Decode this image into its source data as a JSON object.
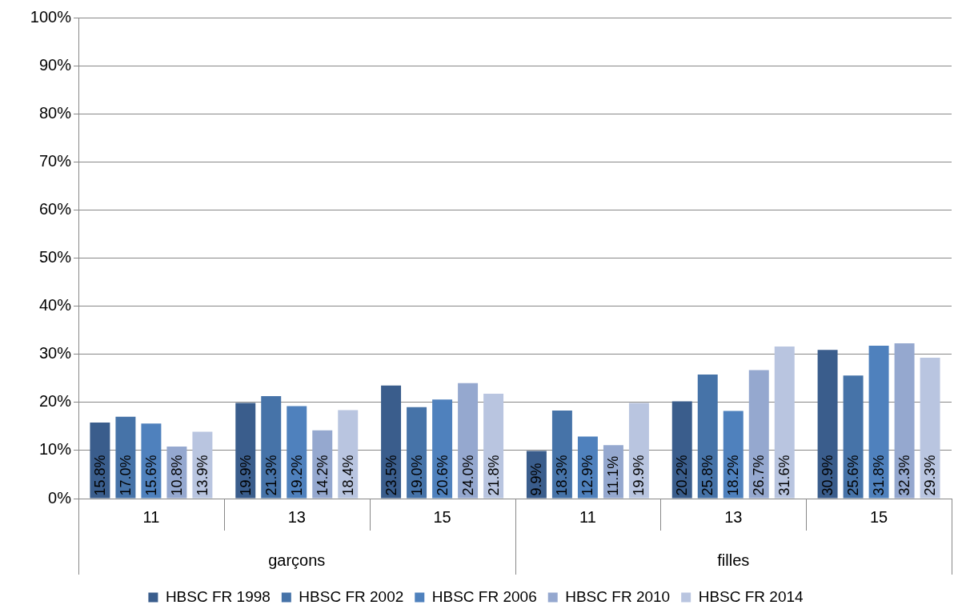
{
  "chart_data": {
    "type": "bar",
    "categories": [
      "11",
      "13",
      "15",
      "11",
      "13",
      "15"
    ],
    "annotations": [
      "garçons",
      "filles"
    ],
    "series": [
      {
        "name": "HBSC FR 1998",
        "color": "#3a5d8c",
        "values": [
          15.8,
          19.9,
          23.5,
          9.9,
          20.2,
          30.9
        ],
        "value_labels": [
          "15.8%",
          "19.9%",
          "23.5%",
          "9.9%",
          "20.2%",
          "30.9%"
        ]
      },
      {
        "name": "HBSC FR 2002",
        "color": "#4673a8",
        "values": [
          17.0,
          21.3,
          19.0,
          18.3,
          25.8,
          25.6
        ],
        "value_labels": [
          "17.0%",
          "21.3%",
          "19.0%",
          "18.3%",
          "25.8%",
          "25.6%"
        ]
      },
      {
        "name": "HBSC FR 2006",
        "color": "#4f81bd",
        "values": [
          15.6,
          19.2,
          20.6,
          12.9,
          18.2,
          31.8
        ],
        "value_labels": [
          "15.6%",
          "19.2%",
          "20.6%",
          "12.9%",
          "18.2%",
          "31.8%"
        ]
      },
      {
        "name": "HBSC FR 2010",
        "color": "#95a8cf",
        "values": [
          10.8,
          14.2,
          24.0,
          11.1,
          26.7,
          32.3
        ],
        "value_labels": [
          "10.8%",
          "14.2%",
          "24.0%",
          "11.1%",
          "26.7%",
          "32.3%"
        ]
      },
      {
        "name": "HBSC FR 2014",
        "color": "#b9c5e0",
        "values": [
          13.9,
          18.4,
          21.8,
          19.9,
          31.6,
          29.3
        ],
        "value_labels": [
          "13.9%",
          "18.4%",
          "21.8%",
          "19.9%",
          "31.6%",
          "29.3%"
        ]
      }
    ],
    "ylim": [
      0,
      100
    ],
    "yticks": [
      {
        "value": 0,
        "label": "0%"
      },
      {
        "value": 10,
        "label": "10%"
      },
      {
        "value": 20,
        "label": "20%"
      },
      {
        "value": 30,
        "label": "30%"
      },
      {
        "value": 40,
        "label": "40%"
      },
      {
        "value": 50,
        "label": "50%"
      },
      {
        "value": 60,
        "label": "60%"
      },
      {
        "value": 70,
        "label": "70%"
      },
      {
        "value": 80,
        "label": "80%"
      },
      {
        "value": 90,
        "label": "90%"
      },
      {
        "value": 100,
        "label": "100%"
      }
    ],
    "grid": "y",
    "legend": "bottom"
  }
}
